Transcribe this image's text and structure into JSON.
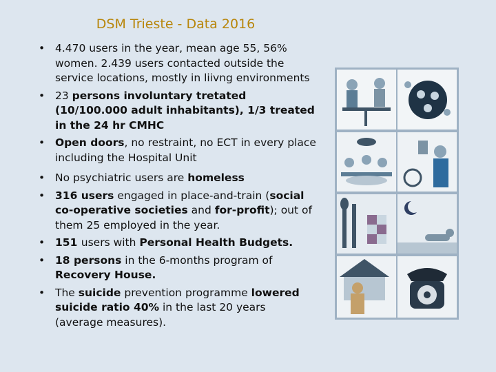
{
  "title": "DSM Trieste - Data 2016",
  "bullets": [
    [
      {
        "t": "4.470 users in the year, mean age 55, 56% women. 2.439 users contacted outside the service locations, mostly in liivng environments",
        "b": false
      }
    ],
    [
      {
        "t": "23 ",
        "b": false
      },
      {
        "t": "persons involuntary tretated (10/100.000 adult inhabitants), 1/3 treated in the 24 hr CMHC",
        "b": true
      }
    ],
    [
      {
        "t": "Open doors",
        "b": true
      },
      {
        "t": ", no restraint, no ECT in every place including the Hospital Unit",
        "b": false
      }
    ],
    [
      {
        "t": "No psychiatric users are ",
        "b": false
      },
      {
        "t": "homeless",
        "b": true
      }
    ],
    [
      {
        "t": "316 users",
        "b": true
      },
      {
        "t": " engaged in place-and-train (",
        "b": false
      },
      {
        "t": "social co-operative societies",
        "b": true
      },
      {
        "t": " and ",
        "b": false
      },
      {
        "t": "for-profit",
        "b": true
      },
      {
        "t": "); out of them 25 employed in the year.",
        "b": false
      }
    ],
    [
      {
        "t": "151 ",
        "b": true
      },
      {
        "t": "users with ",
        "b": false
      },
      {
        "t": "Personal Health Budgets.",
        "b": true
      }
    ],
    [
      {
        "t": "18 persons",
        "b": true
      },
      {
        "t": " in the 6-months program of ",
        "b": false
      },
      {
        "t": "Recovery House.",
        "b": true
      }
    ],
    [
      {
        "t": "The ",
        "b": false
      },
      {
        "t": "suicide",
        "b": true
      },
      {
        "t": " prevention programme ",
        "b": false
      },
      {
        "t": "lowered suicide ratio 40%",
        "b": true
      },
      {
        "t": " in the last 20 years (average measures).",
        "b": false
      }
    ]
  ],
  "illustration_panels": [
    "people-at-table-panel",
    "group-in-circle-panel",
    "family-dinner-panel",
    "man-with-bicycle-panel",
    "cutlery-and-quilt-panel",
    "moon-and-dog-panel",
    "man-by-house-panel",
    "telephone-panel"
  ]
}
